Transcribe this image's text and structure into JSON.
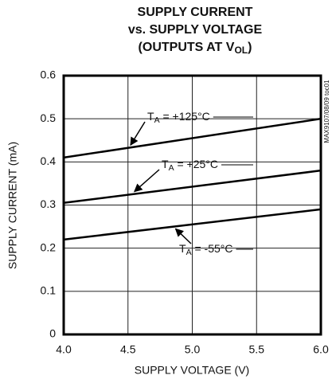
{
  "chart_data": {
    "type": "line",
    "title": [
      [
        "SUPPLY CURRENT"
      ],
      [
        "vs. SUPPLY VOLTAGE"
      ],
      [
        "(OUTPUTS AT V",
        "OL",
        ")"
      ]
    ],
    "x_label": "SUPPLY VOLTAGE (V)",
    "y_label": "SUPPLY CURRENT (mA)",
    "figure_id": "MAX9107/08/09 toc01",
    "x": [
      4.0,
      6.0
    ],
    "series": [
      {
        "name": [
          "T",
          "A",
          " = +125°C"
        ],
        "color": "#000000",
        "values": [
          0.41,
          0.5
        ]
      },
      {
        "name": [
          "T",
          "A",
          " = +25°C"
        ],
        "color": "#000000",
        "values": [
          0.305,
          0.38
        ]
      },
      {
        "name": [
          "T",
          "A",
          " = -55°C"
        ],
        "color": "#000000",
        "values": [
          0.22,
          0.29
        ]
      }
    ],
    "xlim": [
      4.0,
      6.0
    ],
    "xticks": [
      {
        "value": 4.0,
        "label": "4.0"
      },
      4.5,
      {
        "value": 5.0,
        "label": "5.0"
      },
      5.5,
      {
        "value": 6.0,
        "label": "6.0"
      }
    ],
    "ylim": [
      0,
      0.6
    ],
    "yticks": [
      0,
      0.1,
      0.2,
      0.3,
      0.4,
      0.5,
      0.6
    ],
    "grid": true
  }
}
